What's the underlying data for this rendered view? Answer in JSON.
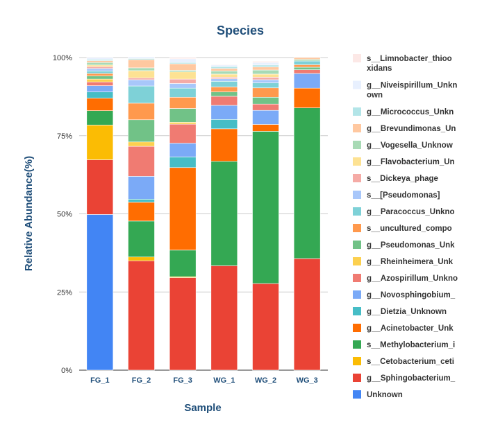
{
  "chart_data": {
    "type": "bar",
    "stacked": true,
    "title": "Species",
    "xlabel": "Sample",
    "ylabel": "Relative Abundance(%)",
    "ylim": [
      0,
      100
    ],
    "yticks": [
      "0%",
      "25%",
      "50%",
      "75%",
      "100%"
    ],
    "categories": [
      "FG_1",
      "FG_2",
      "FG_3",
      "WG_1",
      "WG_2",
      "WG_3"
    ],
    "grid": true,
    "legend_position": "right",
    "series": [
      {
        "name": "Unknown",
        "color": "#4285f4",
        "values": [
          49.8,
          0,
          0,
          0,
          0,
          0
        ]
      },
      {
        "name": "g__Sphingobacterium_",
        "color": "#ea4335",
        "values": [
          17.5,
          35.0,
          29.6,
          33.4,
          27.7,
          35.7
        ]
      },
      {
        "name": "s__Cetobacterium_ceti",
        "color": "#fbbc04",
        "values": [
          11.1,
          1.2,
          0.3,
          0,
          0,
          0
        ]
      },
      {
        "name": "s__Methylobacterium_i",
        "color": "#34a853",
        "values": [
          4.6,
          11.5,
          8.5,
          33.4,
          48.7,
          48.2
        ]
      },
      {
        "name": "g__Acinetobacter_Unk",
        "color": "#ff6d01",
        "values": [
          4.0,
          6.0,
          26.4,
          10.4,
          2.2,
          6.3
        ]
      },
      {
        "name": "g__Dietzia_Unknown",
        "color": "#46bdc6",
        "values": [
          2.0,
          1.0,
          3.4,
          3.0,
          0,
          0
        ]
      },
      {
        "name": "g__Novosphingobium_",
        "color": "#7baaf7",
        "values": [
          2.0,
          7.3,
          4.4,
          4.5,
          4.5,
          4.7
        ]
      },
      {
        "name": "g__Azospirillum_Unkno",
        "color": "#f07b72",
        "values": [
          1.2,
          9.6,
          6.1,
          2.9,
          2.0,
          1.2
        ]
      },
      {
        "name": "g__Rheinheimera_Unk",
        "color": "#fcd04f",
        "values": [
          0.9,
          1.4,
          0.6,
          0,
          0,
          0
        ]
      },
      {
        "name": "g__Pseudomonas_Unk",
        "color": "#71c287",
        "values": [
          1.0,
          7.1,
          4.4,
          1.4,
          2.2,
          0.8
        ]
      },
      {
        "name": "s__uncultured_compo",
        "color": "#ff994d",
        "values": [
          0.8,
          5.3,
          3.6,
          1.6,
          3.0,
          0.8
        ]
      },
      {
        "name": "g__Paracoccus_Unkno",
        "color": "#7ed1d7",
        "values": [
          0.8,
          5.5,
          2.9,
          1.8,
          1.6,
          1.2
        ]
      },
      {
        "name": "s__[Pseudomonas]",
        "color": "#a8c7fa",
        "values": [
          0.8,
          2.0,
          1.5,
          0.8,
          1.0,
          0
        ]
      },
      {
        "name": "s__Dickeya_phage",
        "color": "#f5aba6",
        "values": [
          0.6,
          0.6,
          1.4,
          0.5,
          0.8,
          0
        ]
      },
      {
        "name": "g__Flavobacterium_Un",
        "color": "#fde293",
        "values": [
          0.5,
          2.3,
          2.3,
          1.0,
          1.0,
          0
        ]
      },
      {
        "name": "g__Vogesella_Unknow",
        "color": "#a8dab5",
        "values": [
          0.8,
          0.9,
          0.5,
          1.0,
          1.3,
          0.5
        ]
      },
      {
        "name": "g__Brevundimonas_Un",
        "color": "#ffc8a0",
        "values": [
          0.6,
          2.6,
          2.1,
          0.8,
          1.0,
          0.6
        ]
      },
      {
        "name": "g__Micrococcus_Unkn",
        "color": "#b3e5e8",
        "values": [
          0.4,
          0.4,
          0.4,
          0.6,
          0.6,
          0
        ]
      },
      {
        "name": "g__Niveispirillum_Unknown",
        "color": "#e8f0fe",
        "values": [
          0.6,
          0.5,
          1.2,
          0.5,
          0.8,
          0
        ]
      },
      {
        "name": "s__Limnobacter_thiooxidans",
        "color": "#fce8e6",
        "values": [
          0.0,
          0.0,
          0.4,
          0.2,
          0.4,
          0
        ]
      }
    ],
    "legend_labels": [
      [
        "s__Limnobacter_thioo",
        "xidans"
      ],
      [
        "g__Niveispirillum_Unkn",
        "own"
      ],
      [
        "g__Micrococcus_Unkn"
      ],
      [
        "g__Brevundimonas_Un"
      ],
      [
        "g__Vogesella_Unknow"
      ],
      [
        "g__Flavobacterium_Un"
      ],
      [
        "s__Dickeya_phage"
      ],
      [
        "s__[Pseudomonas]"
      ],
      [
        "g__Paracoccus_Unkno"
      ],
      [
        "s__uncultured_compo"
      ],
      [
        "g__Pseudomonas_Unk"
      ],
      [
        "g__Rheinheimera_Unk"
      ],
      [
        "g__Azospirillum_Unkno"
      ],
      [
        "g__Novosphingobium_"
      ],
      [
        "g__Dietzia_Unknown"
      ],
      [
        "g__Acinetobacter_Unk"
      ],
      [
        "s__Methylobacterium_i"
      ],
      [
        "s__Cetobacterium_ceti"
      ],
      [
        "g__Sphingobacterium_"
      ],
      [
        "Unknown"
      ]
    ]
  }
}
